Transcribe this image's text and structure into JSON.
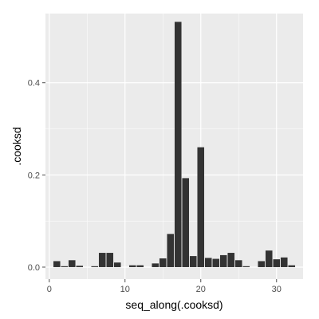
{
  "chart_data": {
    "type": "bar",
    "xlabel": "seq_along(.cooksd)",
    "ylabel": ".cooksd",
    "xlim": [
      -0.5,
      33.5
    ],
    "ylim": [
      -0.026,
      0.55
    ],
    "x_ticks": [
      0,
      10,
      20,
      30
    ],
    "y_ticks": [
      0.0,
      0.2,
      0.4
    ],
    "y_tick_labels": [
      "0.0",
      "0.2",
      "0.4"
    ],
    "grid": true,
    "bar_color": "#333333",
    "panel_background": "#ebebeb",
    "grid_color": "#ffffff",
    "x": [
      1,
      2,
      3,
      4,
      5,
      6,
      7,
      8,
      9,
      10,
      11,
      12,
      13,
      14,
      15,
      16,
      17,
      18,
      19,
      20,
      21,
      22,
      23,
      24,
      25,
      26,
      27,
      28,
      29,
      30,
      31,
      32
    ],
    "values": [
      0.013,
      0.002,
      0.015,
      0.003,
      0.0,
      0.002,
      0.031,
      0.031,
      0.01,
      0.0,
      0.004,
      0.004,
      0.0,
      0.008,
      0.019,
      0.072,
      0.532,
      0.193,
      0.024,
      0.26,
      0.02,
      0.018,
      0.026,
      0.031,
      0.015,
      0.002,
      0.0,
      0.013,
      0.036,
      0.017,
      0.021,
      0.004
    ]
  }
}
